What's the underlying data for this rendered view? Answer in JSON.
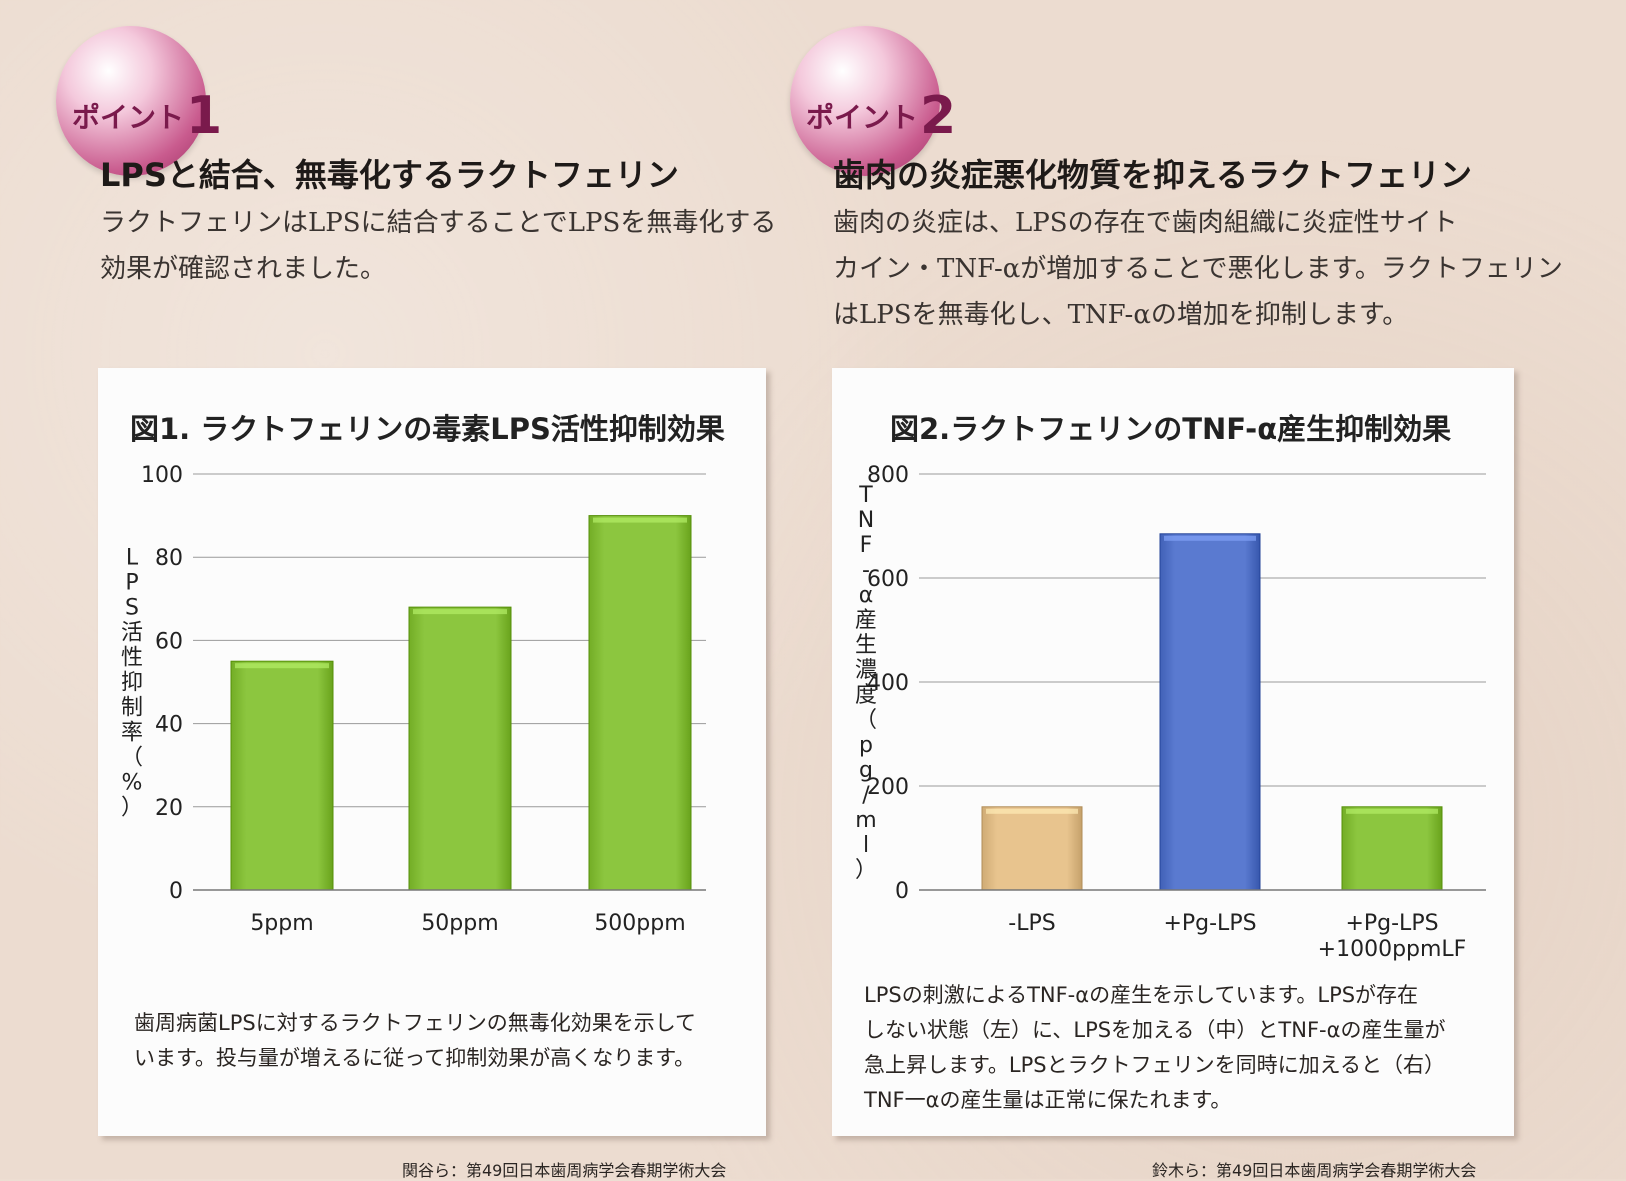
{
  "point1": {
    "badge_text": "ポイント",
    "badge_num": "1",
    "heading": "LPSと結合、無毒化するラクトフェリン",
    "desc_lines": [
      "ラクトフェリンはLPSに結合することでLPSを無毒化する",
      "効果が確認されました。"
    ]
  },
  "point2": {
    "badge_text": "ポイント",
    "badge_num": "2",
    "heading": "歯肉の炎症悪化物質を抑えるラクトフェリン",
    "desc_lines": [
      "歯肉の炎症は、LPSの存在で歯肉組織に炎症性サイト",
      "カイン・TNF-αが増加することで悪化します。ラクトフェリン",
      "はLPSを無毒化し、TNF-αの増加を抑制します。"
    ]
  },
  "chart_data": [
    {
      "type": "bar",
      "title": "図1. ラクトフェリンの毒素LPS活性抑制効果",
      "ylabel": "LPS活性抑制率（%）",
      "xlabel": "",
      "categories": [
        "5ppm",
        "50ppm",
        "500ppm"
      ],
      "values": [
        55,
        68,
        90
      ],
      "ylim": [
        0,
        100
      ],
      "yticks": [
        "0",
        "20",
        "40",
        "60",
        "80",
        "100"
      ],
      "bar_colors": [
        "#8cc63f",
        "#8cc63f",
        "#8cc63f"
      ],
      "grid": true
    },
    {
      "type": "bar",
      "title": "図2.ラクトフェリンのTNF-α産生抑制効果",
      "ylabel": "TNF-α産生濃度（pg/ml）",
      "xlabel": "",
      "categories": [
        "-LPS",
        "+Pg-LPS",
        "+Pg-LPS\n+1000ppmLF"
      ],
      "values": [
        160,
        685,
        160
      ],
      "ylim": [
        0,
        800
      ],
      "yticks": [
        "0",
        "200",
        "400",
        "600",
        "800"
      ],
      "bar_colors": [
        "#e8c48e",
        "#5a7ad0",
        "#8cc63f"
      ],
      "grid": true
    }
  ],
  "note1_lines": [
    "歯周病菌LPSに対するラクトフェリンの無毒化効果を示して",
    "います。投与量が増えるに従って抑制効果が高くなります。"
  ],
  "note2_lines": [
    "LPSの刺激によるTNF-αの産生を示しています。LPSが存在",
    "しない状態（左）に、LPSを加える（中）とTNF-αの産生量が",
    "急上昇します。LPSとラクトフェリンを同時に加えると（右）",
    "TNF一αの産生量は正常に保たれます。"
  ],
  "citation1": "関谷ら：第49回日本歯周病学会春期学術大会",
  "citation2": "鈴木ら：第49回日本歯周病学会春期学術大会"
}
